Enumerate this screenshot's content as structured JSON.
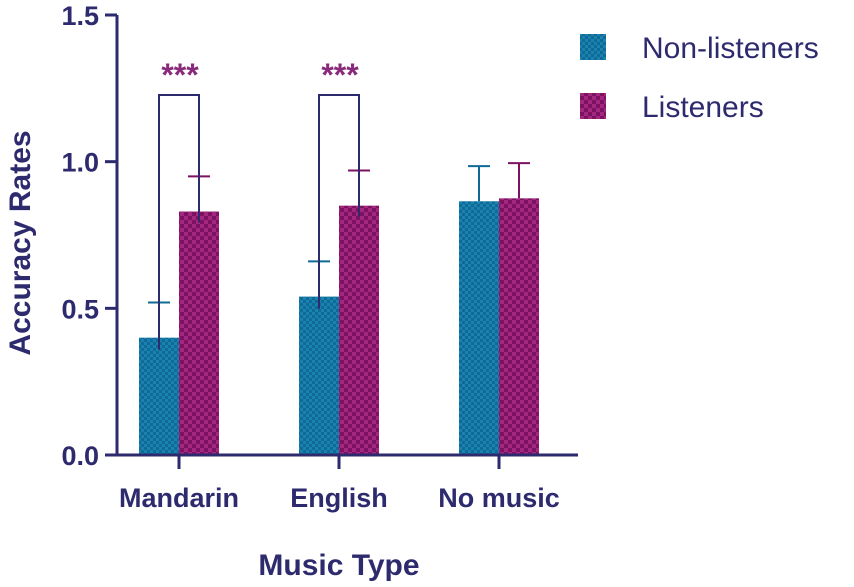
{
  "chart_data": {
    "type": "bar",
    "categories": [
      "Mandarin",
      "English",
      "No music"
    ],
    "series": [
      {
        "name": "Non-listeners",
        "values": [
          0.4,
          0.54,
          0.865
        ],
        "errors": [
          0.12,
          0.12,
          0.12
        ],
        "color": "#0f6b96"
      },
      {
        "name": "Listeners",
        "values": [
          0.83,
          0.85,
          0.875
        ],
        "errors": [
          0.12,
          0.12,
          0.12
        ],
        "color": "#7d1263"
      }
    ],
    "xlabel": "Music Type",
    "ylabel": "Accuracy Rates",
    "ylim": [
      0,
      1.5
    ],
    "yticks": [
      0.0,
      0.5,
      1.0,
      1.5
    ],
    "ytick_labels": [
      "0.0",
      "0.5",
      "1.0",
      "1.5"
    ],
    "significance": [
      {
        "category": "Mandarin",
        "label": "***"
      },
      {
        "category": "English",
        "label": "***"
      }
    ],
    "legend_position": "top-right",
    "grid": false,
    "axis_color": "#2d2a6e",
    "sig_color": "#8a2a7c"
  }
}
